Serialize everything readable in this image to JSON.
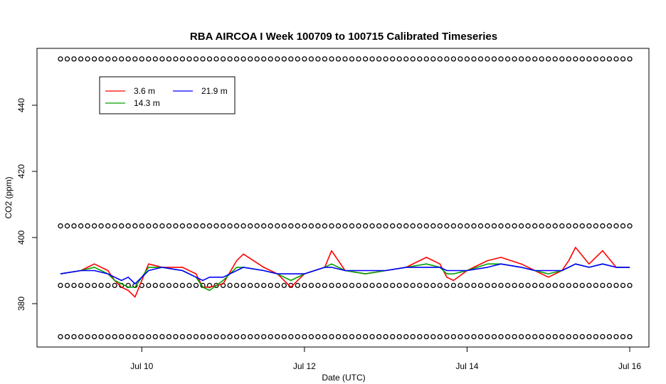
{
  "chart_data": {
    "type": "line",
    "title": "RBA AIRCOA I  Week 100709 to 100715  Calibrated Timeseries",
    "xlabel": "Date (UTC)",
    "ylabel": "CO2 (ppm)",
    "xlim": [
      "2010-07-09 00:00",
      "2010-07-16 00:00"
    ],
    "ylim": [
      366,
      456
    ],
    "x_ticks": [
      {
        "value": "2010-07-10",
        "label": "Jul 10"
      },
      {
        "value": "2010-07-12",
        "label": "Jul 12"
      },
      {
        "value": "2010-07-14",
        "label": "Jul 14"
      },
      {
        "value": "2010-07-16",
        "label": "Jul 16"
      }
    ],
    "y_ticks": [
      380,
      400,
      420,
      440
    ],
    "grid": false,
    "legend": {
      "placement": "top-left",
      "entries": [
        {
          "name": "3.6 m",
          "color": "#ff0000",
          "col": 0,
          "row": 0
        },
        {
          "name": "14.3 m",
          "color": "#00a000",
          "col": 0,
          "row": 1
        },
        {
          "name": "21.9 m",
          "color": "#0000ff",
          "col": 1,
          "row": 0
        }
      ]
    },
    "series": [
      {
        "name": "3.6 m",
        "color": "#ff0000",
        "x": [
          "2010-07-09 00:00",
          "2010-07-09 06:00",
          "2010-07-09 10:00",
          "2010-07-09 14:00",
          "2010-07-09 16:00",
          "2010-07-09 18:00",
          "2010-07-09 20:00",
          "2010-07-09 22:00",
          "2010-07-10 00:00",
          "2010-07-10 02:00",
          "2010-07-10 06:00",
          "2010-07-10 12:00",
          "2010-07-10 16:00",
          "2010-07-10 18:00",
          "2010-07-10 20:00",
          "2010-07-11 00:00",
          "2010-07-11 04:00",
          "2010-07-11 06:00",
          "2010-07-11 12:00",
          "2010-07-11 16:00",
          "2010-07-11 18:00",
          "2010-07-11 20:00",
          "2010-07-12 00:00",
          "2010-07-12 06:00",
          "2010-07-12 08:00",
          "2010-07-12 12:00",
          "2010-07-12 18:00",
          "2010-07-13 00:00",
          "2010-07-13 06:00",
          "2010-07-13 12:00",
          "2010-07-13 16:00",
          "2010-07-13 18:00",
          "2010-07-13 20:00",
          "2010-07-14 00:00",
          "2010-07-14 06:00",
          "2010-07-14 10:00",
          "2010-07-14 16:00",
          "2010-07-14 20:00",
          "2010-07-15 00:00",
          "2010-07-15 04:00",
          "2010-07-15 06:00",
          "2010-07-15 08:00",
          "2010-07-15 12:00",
          "2010-07-15 16:00",
          "2010-07-15 20:00",
          "2010-07-16 00:00"
        ],
        "y": [
          389,
          390,
          392,
          390,
          387,
          385,
          384,
          382,
          387,
          392,
          391,
          391,
          389,
          385,
          385,
          386,
          393,
          395,
          391,
          389,
          387,
          385,
          389,
          391,
          396,
          390,
          389,
          390,
          391,
          394,
          392,
          388,
          387,
          390,
          393,
          394,
          392,
          390,
          388,
          390,
          393,
          397,
          392,
          396,
          391,
          391
        ]
      },
      {
        "name": "14.3 m",
        "color": "#00a000",
        "x": [
          "2010-07-09 00:00",
          "2010-07-09 06:00",
          "2010-07-09 10:00",
          "2010-07-09 14:00",
          "2010-07-09 16:00",
          "2010-07-09 18:00",
          "2010-07-09 20:00",
          "2010-07-09 22:00",
          "2010-07-10 00:00",
          "2010-07-10 02:00",
          "2010-07-10 06:00",
          "2010-07-10 12:00",
          "2010-07-10 16:00",
          "2010-07-10 18:00",
          "2010-07-10 20:00",
          "2010-07-11 00:00",
          "2010-07-11 04:00",
          "2010-07-11 06:00",
          "2010-07-11 12:00",
          "2010-07-11 16:00",
          "2010-07-11 18:00",
          "2010-07-11 20:00",
          "2010-07-12 00:00",
          "2010-07-12 06:00",
          "2010-07-12 08:00",
          "2010-07-12 12:00",
          "2010-07-12 18:00",
          "2010-07-13 00:00",
          "2010-07-13 06:00",
          "2010-07-13 12:00",
          "2010-07-13 16:00",
          "2010-07-13 18:00",
          "2010-07-13 20:00",
          "2010-07-14 00:00",
          "2010-07-14 06:00",
          "2010-07-14 10:00",
          "2010-07-14 16:00",
          "2010-07-14 20:00",
          "2010-07-15 00:00",
          "2010-07-15 04:00",
          "2010-07-15 06:00",
          "2010-07-15 08:00",
          "2010-07-15 12:00",
          "2010-07-15 16:00",
          "2010-07-15 20:00",
          "2010-07-16 00:00"
        ],
        "y": [
          389,
          390,
          391,
          389,
          387,
          386,
          385,
          385,
          388,
          391,
          391,
          390,
          388,
          385,
          384,
          387,
          391,
          391,
          390,
          389,
          388,
          387,
          389,
          391,
          392,
          390,
          389,
          390,
          391,
          392,
          391,
          389,
          389,
          390,
          392,
          392,
          391,
          390,
          389,
          390,
          391,
          392,
          391,
          392,
          391,
          391
        ]
      },
      {
        "name": "21.9 m",
        "color": "#0000ff",
        "x": [
          "2010-07-09 00:00",
          "2010-07-09 06:00",
          "2010-07-09 10:00",
          "2010-07-09 14:00",
          "2010-07-09 16:00",
          "2010-07-09 18:00",
          "2010-07-09 20:00",
          "2010-07-09 22:00",
          "2010-07-10 00:00",
          "2010-07-10 02:00",
          "2010-07-10 06:00",
          "2010-07-10 12:00",
          "2010-07-10 16:00",
          "2010-07-10 18:00",
          "2010-07-10 20:00",
          "2010-07-11 00:00",
          "2010-07-11 04:00",
          "2010-07-11 06:00",
          "2010-07-11 12:00",
          "2010-07-11 16:00",
          "2010-07-11 18:00",
          "2010-07-11 20:00",
          "2010-07-12 00:00",
          "2010-07-12 06:00",
          "2010-07-12 08:00",
          "2010-07-12 12:00",
          "2010-07-12 18:00",
          "2010-07-13 00:00",
          "2010-07-13 06:00",
          "2010-07-13 12:00",
          "2010-07-13 16:00",
          "2010-07-13 18:00",
          "2010-07-13 20:00",
          "2010-07-14 00:00",
          "2010-07-14 06:00",
          "2010-07-14 10:00",
          "2010-07-14 16:00",
          "2010-07-14 20:00",
          "2010-07-15 00:00",
          "2010-07-15 04:00",
          "2010-07-15 06:00",
          "2010-07-15 08:00",
          "2010-07-15 12:00",
          "2010-07-15 16:00",
          "2010-07-15 20:00",
          "2010-07-16 00:00"
        ],
        "y": [
          389,
          390,
          390,
          389,
          388,
          387,
          388,
          386,
          388,
          390,
          391,
          390,
          388,
          387,
          388,
          388,
          390,
          391,
          390,
          389,
          389,
          389,
          389,
          391,
          391,
          390,
          390,
          390,
          391,
          391,
          391,
          390,
          390,
          390,
          391,
          392,
          391,
          390,
          390,
          390,
          391,
          392,
          391,
          392,
          391,
          391
        ]
      },
      {
        "name": "",
        "type": "scatter",
        "color": "#000000",
        "level": 454,
        "x_ranges": [
          [
            "2010-07-09 00:00",
            "2010-07-15 16:30"
          ],
          [
            "2010-07-15 18:00",
            "2010-07-16 00:00"
          ]
        ]
      },
      {
        "name": "",
        "type": "scatter",
        "color": "#000000",
        "level": 403.5,
        "x_ranges": [
          [
            "2010-07-09 00:00",
            "2010-07-15 16:30"
          ],
          [
            "2010-07-15 18:00",
            "2010-07-16 00:00"
          ]
        ]
      },
      {
        "name": "",
        "type": "scatter",
        "color": "#000000",
        "level": 385.5,
        "x_ranges": [
          [
            "2010-07-09 00:00",
            "2010-07-15 16:30"
          ],
          [
            "2010-07-15 18:00",
            "2010-07-16 00:00"
          ]
        ]
      },
      {
        "name": "",
        "type": "scatter",
        "color": "#000000",
        "level": 370,
        "x_ranges": [
          [
            "2010-07-09 00:00",
            "2010-07-15 16:30"
          ],
          [
            "2010-07-15 18:00",
            "2010-07-16 00:00"
          ]
        ]
      }
    ]
  }
}
